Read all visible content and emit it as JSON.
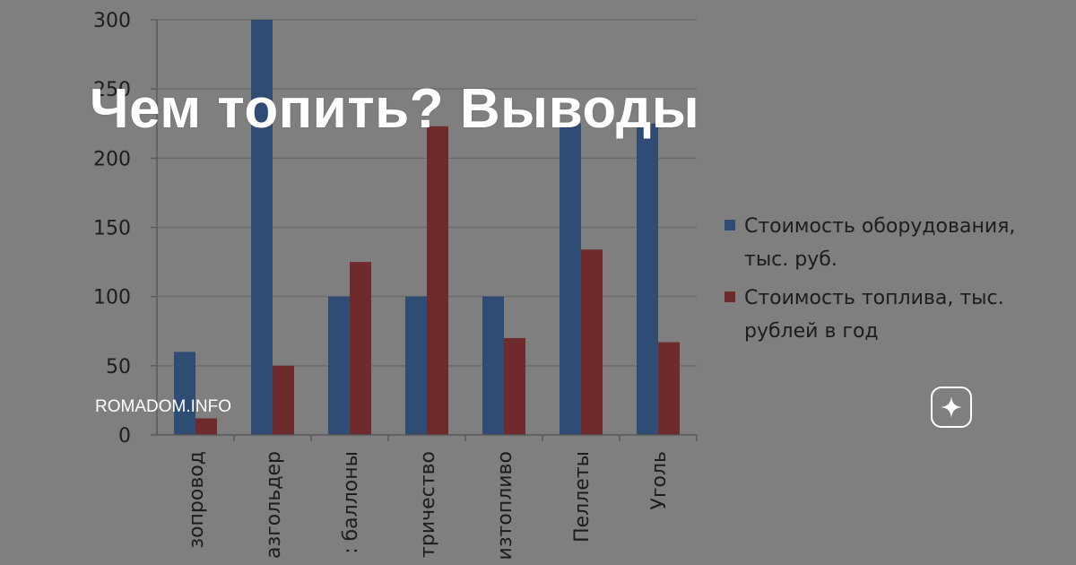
{
  "headline": "Чем топить? Выводы",
  "source_label": "ROMADOM.INFO",
  "logo_icon": "sparkle-icon",
  "chart_data": {
    "type": "bar",
    "categories": [
      "зопровод",
      "азгольдер",
      ": баллоны",
      "тричество",
      "изтопливо",
      "Пеллеты",
      "Уголь"
    ],
    "series": [
      {
        "name": "Стоимость оборудования, тыс. руб.",
        "color": "#2f4c75",
        "values": [
          60,
          300,
          100,
          100,
          100,
          225,
          225
        ]
      },
      {
        "name": "Стоимость топлива, тыс. рублей в год",
        "color": "#6f2b2b",
        "values": [
          12,
          50,
          125,
          223,
          70,
          134,
          67
        ]
      }
    ],
    "yticks": [
      0,
      50,
      100,
      150,
      200,
      250,
      300
    ],
    "ylim": [
      0,
      300
    ],
    "grid": true,
    "legend_position": "right",
    "colors": {
      "background": "#7f7f7f",
      "grid": "#6b6b6b",
      "axis": "#5a5a5a",
      "text": "#1d1d1d"
    }
  }
}
